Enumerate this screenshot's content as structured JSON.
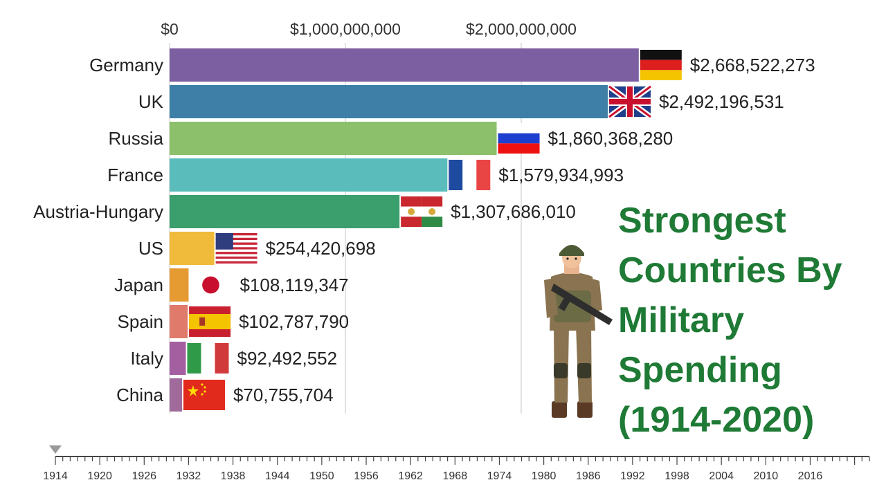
{
  "chart_data": {
    "type": "bar",
    "orientation": "horizontal",
    "title_lines": [
      "Strongest",
      "Countries By",
      "Military",
      "Spending",
      "(1914-2020)"
    ],
    "x_ticks": [
      {
        "value": 0,
        "label": "$0"
      },
      {
        "value": 1000000000,
        "label": "$1,000,000,000"
      },
      {
        "value": 2000000000,
        "label": "$2,000,000,000"
      }
    ],
    "categories": [
      "Germany",
      "UK",
      "Russia",
      "France",
      "Austria-Hungary",
      "US",
      "Japan",
      "Spain",
      "Italy",
      "China"
    ],
    "values": [
      2668522273,
      2492196531,
      1860368280,
      1579934993,
      1307686010,
      254420698,
      108119347,
      102787790,
      92492552,
      70755704
    ],
    "value_labels": [
      "$2,668,522,273",
      "$2,492,196,531",
      "$1,860,368,280",
      "$1,579,934,993",
      "$1,307,686,010",
      "$254,420,698",
      "$108,119,347",
      "$102,787,790",
      "$92,492,552",
      "$70,755,704"
    ],
    "bar_colors": [
      "#7c5fa0",
      "#3d7fa6",
      "#8cc06b",
      "#5bbcbc",
      "#3a9e6d",
      "#f0bb3a",
      "#e69a32",
      "#e07a6b",
      "#a45fa0",
      "#a06b9a"
    ],
    "flags": [
      "germany-flag",
      "uk-flag",
      "russia-flag",
      "france-flag",
      "austria-hungary-flag",
      "us-flag",
      "japan-flag",
      "spain-flag",
      "italy-flag",
      "china-flag"
    ],
    "xlim": [
      0,
      2668522273
    ],
    "grid": true,
    "timeline": {
      "years": [
        1914,
        1920,
        1926,
        1932,
        1938,
        1944,
        1950,
        1956,
        1962,
        1968,
        1974,
        1980,
        1986,
        1992,
        1998,
        2004,
        2010,
        2016
      ],
      "current_year": 1914,
      "start": 1914,
      "end": 2020
    }
  }
}
